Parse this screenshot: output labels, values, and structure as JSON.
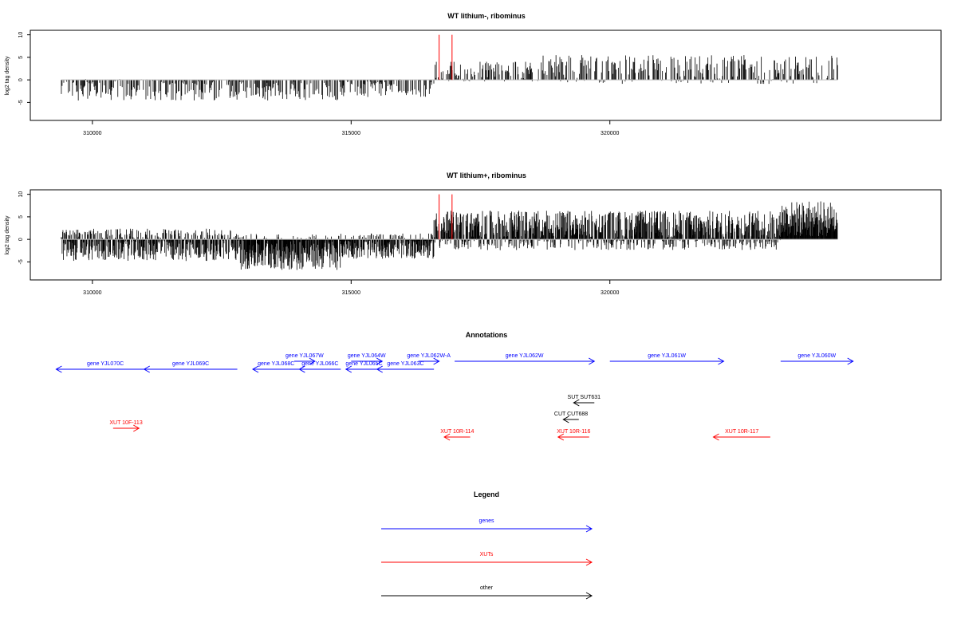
{
  "colors": {
    "gene": "#0000ff",
    "xut": "#ff0000",
    "other": "#000000",
    "trace": "#000000",
    "baseline": "#bebebe",
    "marker": "#ff0000"
  },
  "chart_data": [
    {
      "type": "bar",
      "title": "WT lithium-, ribominus",
      "ylabel": "log2 tag density",
      "xlim": [
        308800,
        326400
      ],
      "ylim": [
        -9,
        11
      ],
      "xticks": [
        310000,
        315000,
        320000
      ],
      "xtick_labels": [
        "310000",
        "315000",
        "320000"
      ],
      "yticks": [
        -5,
        0,
        5,
        10
      ],
      "ytick_labels": [
        "-5",
        "0",
        "5",
        "10"
      ],
      "grid": false,
      "baseline_range": [
        309400,
        324400
      ],
      "markers": [
        {
          "x": 316700,
          "y": 10
        },
        {
          "x": 316950,
          "y": 10
        }
      ],
      "regions": [
        {
          "x": [
            309400,
            314800
          ],
          "y": [
            -5,
            1
          ],
          "gap_x": [
            310700,
            313600
          ],
          "mean": -2.2
        },
        {
          "x": [
            314800,
            316600
          ],
          "y": [
            -4,
            1
          ],
          "mean": -1.8
        },
        {
          "x": [
            316600,
            318500
          ],
          "y": [
            -2,
            4
          ],
          "mean": 2.0
        },
        {
          "x": [
            318500,
            324400
          ],
          "y": [
            -2,
            6
          ],
          "mean": 2.3
        }
      ]
    },
    {
      "type": "bar",
      "title": "WT lithium+, ribominus",
      "ylabel": "log2 tag density",
      "xlim": [
        308800,
        326400
      ],
      "ylim": [
        -9,
        11
      ],
      "xticks": [
        310000,
        315000,
        320000
      ],
      "xtick_labels": [
        "310000",
        "315000",
        "320000"
      ],
      "yticks": [
        -5,
        0,
        5,
        10
      ],
      "ytick_labels": [
        "-5",
        "0",
        "5",
        "10"
      ],
      "grid": false,
      "baseline_range": [
        309400,
        324400
      ],
      "markers": [
        {
          "x": 316700,
          "y": 10
        },
        {
          "x": 316950,
          "y": 10
        }
      ],
      "regions": [
        {
          "x": [
            309400,
            312800
          ],
          "y": [
            -6,
            3
          ],
          "mean": -1.2
        },
        {
          "x": [
            312800,
            314800
          ],
          "y": [
            -8,
            2
          ],
          "mean": -2.8
        },
        {
          "x": [
            314800,
            316600
          ],
          "y": [
            -5,
            2
          ],
          "mean": -1.5
        },
        {
          "x": [
            316600,
            323300
          ],
          "y": [
            -4,
            7
          ],
          "mean": 2.0
        },
        {
          "x": [
            323300,
            324400
          ],
          "y": [
            0,
            10
          ],
          "mean": 4.5
        }
      ]
    }
  ],
  "annotations": {
    "title": "Annotations",
    "features": [
      {
        "label": "gene YJL070C",
        "cls": "gene",
        "start": 309300,
        "end": 311200,
        "strand": "-",
        "row": 1
      },
      {
        "label": "gene YJL069C",
        "cls": "gene",
        "start": 311000,
        "end": 312800,
        "strand": "-",
        "row": 1
      },
      {
        "label": "gene YJL068C",
        "cls": "gene",
        "start": 313100,
        "end": 314000,
        "strand": "-",
        "row": 1
      },
      {
        "label": "gene YJL067W",
        "cls": "gene",
        "start": 313900,
        "end": 314300,
        "strand": "+",
        "row": 0
      },
      {
        "label": "gene YJL066C",
        "cls": "gene",
        "start": 314000,
        "end": 314800,
        "strand": "-",
        "row": 1
      },
      {
        "label": "gene YJL064W",
        "cls": "gene",
        "start": 315000,
        "end": 315600,
        "strand": "+",
        "row": 0
      },
      {
        "label": "gene YJL065C",
        "cls": "gene",
        "start": 314900,
        "end": 315600,
        "strand": "-",
        "row": 1
      },
      {
        "label": "gene YJL063C",
        "cls": "gene",
        "start": 315500,
        "end": 316600,
        "strand": "-",
        "row": 1
      },
      {
        "label": "gene YJL062W-A",
        "cls": "gene",
        "start": 316300,
        "end": 316700,
        "strand": "+",
        "row": 0
      },
      {
        "label": "gene YJL062W",
        "cls": "gene",
        "start": 317000,
        "end": 319700,
        "strand": "+",
        "row": 0
      },
      {
        "label": "gene YJL061W",
        "cls": "gene",
        "start": 320000,
        "end": 322200,
        "strand": "+",
        "row": 0
      },
      {
        "label": "gene YJL060W",
        "cls": "gene",
        "start": 323300,
        "end": 324700,
        "strand": "+",
        "row": 0
      },
      {
        "label": "SUT SUT631",
        "cls": "other",
        "start": 319300,
        "end": 319700,
        "strand": "-",
        "row": 2
      },
      {
        "label": "CUT CUT688",
        "cls": "other",
        "start": 319100,
        "end": 319400,
        "strand": "-",
        "row": 3
      },
      {
        "label": "XUT 10F-113",
        "cls": "xut",
        "start": 310400,
        "end": 310900,
        "strand": "+",
        "row": 4
      },
      {
        "label": "XUT 10R-114",
        "cls": "xut",
        "start": 316800,
        "end": 317300,
        "strand": "-",
        "row": 5
      },
      {
        "label": "XUT 10R-116",
        "cls": "xut",
        "start": 319000,
        "end": 319600,
        "strand": "-",
        "row": 5
      },
      {
        "label": "XUT 10R-117",
        "cls": "xut",
        "start": 322000,
        "end": 323100,
        "strand": "-",
        "row": 5
      }
    ]
  },
  "legend": {
    "title": "Legend",
    "items": [
      {
        "label": "genes",
        "cls": "gene"
      },
      {
        "label": "XUTs",
        "cls": "xut"
      },
      {
        "label": "other",
        "cls": "other"
      }
    ]
  }
}
